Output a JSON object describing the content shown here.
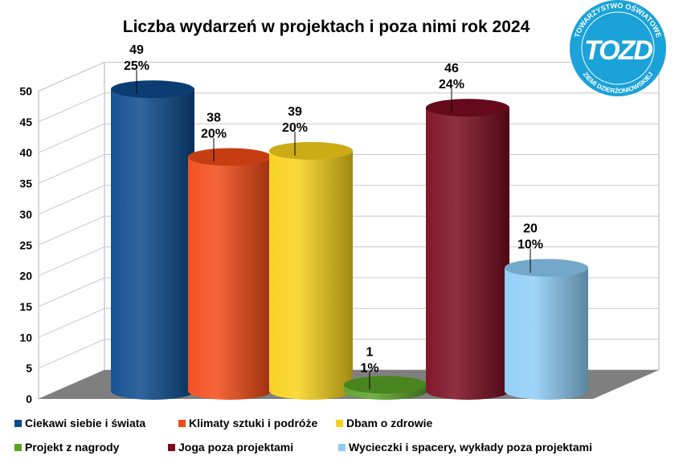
{
  "chart_data": {
    "type": "bar",
    "title": "Liczba wydarzeń w projektach i poza nimi rok 2024",
    "categories": [
      "Ciekawi siebie i świata",
      "Klimaty sztuki i podróże",
      "Dbam o zdrowie",
      "Projekt z nagrody",
      "Joga poza projektami",
      "Wycieczki i spacery, wykłady poza projektami"
    ],
    "values": [
      49,
      38,
      39,
      1,
      46,
      20
    ],
    "percent_labels": [
      "25%",
      "20%",
      "20%",
      "1%",
      "24%",
      "10%"
    ],
    "colors": [
      "#0d4a8c",
      "#f24a16",
      "#f7d11b",
      "#5aa126",
      "#7a0c20",
      "#8ecdf7"
    ],
    "ylim": [
      0,
      50
    ],
    "yticks": [
      0,
      5,
      10,
      15,
      20,
      25,
      30,
      35,
      40,
      45,
      50
    ],
    "legend_position": "bottom",
    "grid": true
  },
  "logo": {
    "top_text": "TOWARZYSTWO OŚWIATOWE",
    "bottom_text": "ZIEMI DZIERŻONIOWSKIEJ",
    "mark": "TOZD"
  }
}
